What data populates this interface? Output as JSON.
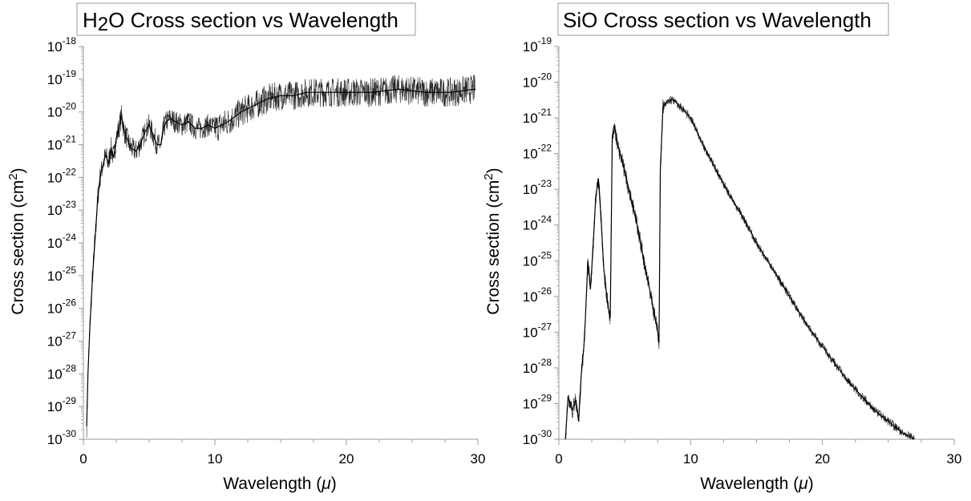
{
  "chart_data": [
    {
      "type": "line",
      "title": {
        "pre": "H",
        "sub": "2",
        "post": "O Cross section vs Wavelength"
      },
      "xlabel": {
        "text": "Wavelength (",
        "sym": "μ",
        "close": ")"
      },
      "ylabel": {
        "pre": "Cross section (cm",
        "sup": "2",
        "post": ")"
      },
      "x_ticks": [
        0,
        10,
        20,
        30
      ],
      "xlim": [
        0,
        30
      ],
      "y_scale": "log",
      "y_tick_base": "10",
      "y_tick_exponents": [
        "-18",
        "-19",
        "-20",
        "-21",
        "-22",
        "-23",
        "-24",
        "-25",
        "-26",
        "-27",
        "-28",
        "-29",
        "-30"
      ],
      "ylim_exponent": [
        -30,
        -18
      ],
      "line_color": "#000000",
      "grid": false,
      "series": [
        {
          "x": [
            0.25,
            0.35,
            0.5,
            0.7,
            0.9,
            1.1,
            1.3,
            1.5,
            1.7,
            1.9,
            2.1,
            2.3,
            2.5,
            2.7,
            2.9,
            3.1,
            3.3,
            3.6,
            4.0,
            4.3,
            4.7,
            5.0,
            5.3,
            5.6,
            5.9,
            6.1,
            6.3,
            6.6,
            7.0,
            7.5,
            8.0,
            8.5,
            9.0,
            9.5,
            10.0,
            11.0,
            12.0,
            13.0,
            14.0,
            15.0,
            16.0,
            17.0,
            18.0,
            19.0,
            20.0,
            22.0,
            24.0,
            26.0,
            28.0,
            29.8
          ],
          "log_values": [
            -29.6,
            -28.0,
            -26.5,
            -25.0,
            -23.8,
            -22.6,
            -21.9,
            -21.6,
            -21.3,
            -21.6,
            -21.1,
            -21.4,
            -20.8,
            -20.5,
            -20.1,
            -20.6,
            -20.8,
            -21.1,
            -21.2,
            -21.0,
            -20.6,
            -20.4,
            -20.7,
            -21.0,
            -21.0,
            -20.5,
            -20.3,
            -20.2,
            -20.3,
            -20.4,
            -20.3,
            -20.5,
            -20.5,
            -20.4,
            -20.5,
            -20.3,
            -20.0,
            -19.8,
            -19.6,
            -19.5,
            -19.5,
            -19.4,
            -19.4,
            -19.4,
            -19.4,
            -19.4,
            -19.3,
            -19.4,
            -19.4,
            -19.3
          ]
        }
      ]
    },
    {
      "type": "line",
      "title": {
        "pre": "SiO Cross section vs Wavelength",
        "sub": "",
        "post": ""
      },
      "xlabel": {
        "text": "Wavelength (",
        "sym": "μ",
        "close": ")"
      },
      "ylabel": {
        "pre": "Cross section (cm",
        "sup": "2",
        "post": ")"
      },
      "x_ticks": [
        0,
        10,
        20,
        30
      ],
      "xlim": [
        0,
        30
      ],
      "y_scale": "log",
      "y_tick_base": "10",
      "y_tick_exponents": [
        "-19",
        "-20",
        "-21",
        "-22",
        "-23",
        "-24",
        "-25",
        "-26",
        "-27",
        "-28",
        "-29",
        "-30"
      ],
      "ylim_exponent": [
        -30,
        -19
      ],
      "line_color": "#000000",
      "grid": false,
      "series": [
        {
          "x": [
            0.5,
            0.7,
            1.0,
            1.3,
            1.5,
            1.7,
            1.9,
            2.0,
            2.2,
            2.4,
            2.6,
            2.8,
            3.0,
            3.2,
            3.4,
            3.7,
            3.9,
            4.05,
            4.2,
            4.5,
            5.0,
            5.5,
            6.0,
            6.5,
            7.0,
            7.5,
            7.6,
            7.7,
            7.9,
            8.3,
            8.7,
            9.0,
            9.5,
            10.0,
            11.0,
            12.0,
            13.0,
            14.0,
            15.0,
            16.0,
            17.0,
            18.0,
            19.0,
            20.0,
            21.0,
            22.0,
            23.0,
            24.0,
            25.0,
            26.0,
            27.0
          ],
          "log_values": [
            -30.0,
            -28.8,
            -29.2,
            -28.9,
            -29.5,
            -28.2,
            -27.4,
            -26.7,
            -25.0,
            -25.8,
            -24.6,
            -23.2,
            -22.7,
            -23.8,
            -25.2,
            -26.2,
            -26.6,
            -21.5,
            -21.2,
            -21.8,
            -22.5,
            -23.3,
            -24.1,
            -25.1,
            -26.0,
            -27.0,
            -27.3,
            -22.5,
            -20.7,
            -20.5,
            -20.5,
            -20.6,
            -20.8,
            -21.0,
            -21.8,
            -22.5,
            -23.2,
            -23.8,
            -24.5,
            -25.1,
            -25.7,
            -26.3,
            -26.9,
            -27.4,
            -27.9,
            -28.4,
            -28.8,
            -29.2,
            -29.5,
            -29.8,
            -30.0
          ]
        }
      ]
    }
  ]
}
